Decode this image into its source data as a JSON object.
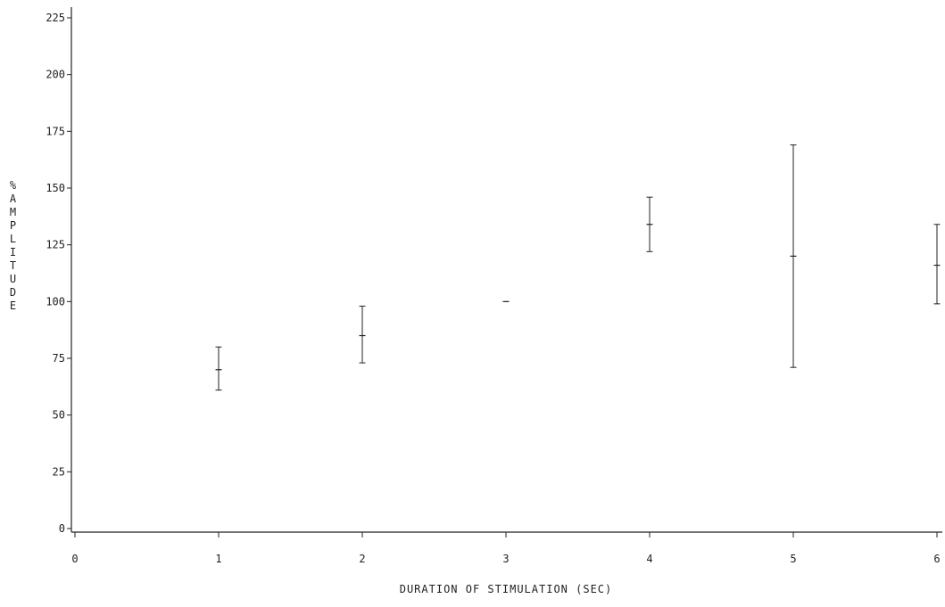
{
  "chart_data": {
    "type": "scatter",
    "title": "",
    "xlabel": "DURATION OF STIMULATION (SEC)",
    "ylabel": "% AMPLITUDE",
    "xlim": [
      0,
      6
    ],
    "ylim": [
      0,
      225
    ],
    "x_ticks": [
      0,
      1,
      2,
      3,
      4,
      5,
      6
    ],
    "y_ticks": [
      0,
      25,
      50,
      75,
      100,
      125,
      150,
      175,
      200,
      225
    ],
    "grid": false,
    "error_bars": true,
    "series": [
      {
        "points": [
          {
            "x": 1,
            "y": 70,
            "low": 61,
            "high": 80
          },
          {
            "x": 2,
            "y": 85,
            "low": 73,
            "high": 98
          },
          {
            "x": 3,
            "y": 100,
            "low": 100,
            "high": 100
          },
          {
            "x": 4,
            "y": 134,
            "low": 122,
            "high": 146
          },
          {
            "x": 5,
            "y": 120,
            "low": 71,
            "high": 169
          },
          {
            "x": 6,
            "y": 116,
            "low": 99,
            "high": 134
          }
        ]
      }
    ],
    "colors": {
      "axis": "#222222",
      "marks": "#222222"
    }
  }
}
